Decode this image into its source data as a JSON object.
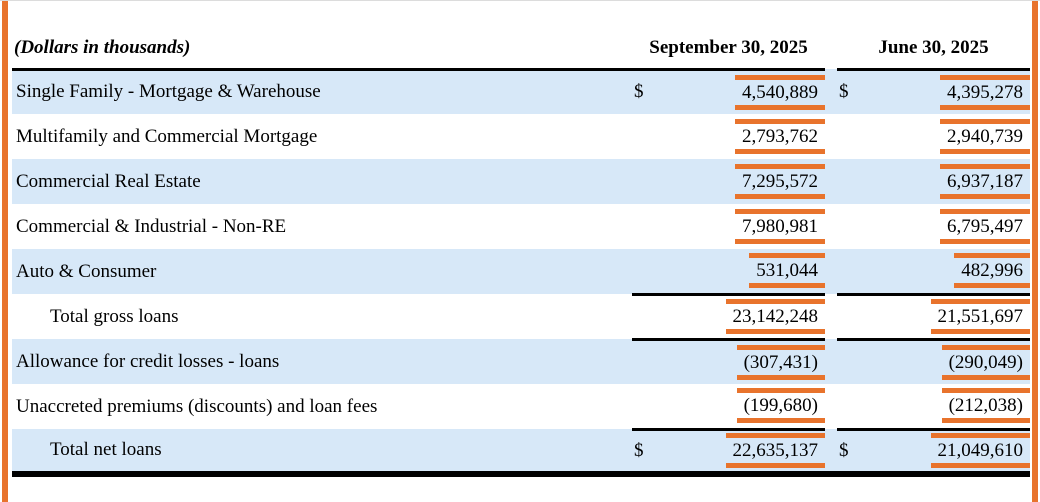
{
  "report_table": {
    "units_label": "(Dollars in thousands)",
    "currency_symbol": "$",
    "column_headers": [
      "September 30, 2025",
      "June 30, 2025"
    ],
    "rows": [
      {
        "label": "Single Family - Mortgage & Warehouse",
        "sep30_2025": "4,540,889",
        "jun30_2025": "4,395,278"
      },
      {
        "label": "Multifamily and Commercial Mortgage",
        "sep30_2025": "2,793,762",
        "jun30_2025": "2,940,739"
      },
      {
        "label": "Commercial Real Estate",
        "sep30_2025": "7,295,572",
        "jun30_2025": "6,937,187"
      },
      {
        "label": "Commercial & Industrial - Non-RE",
        "sep30_2025": "7,980,981",
        "jun30_2025": "6,795,497"
      },
      {
        "label": "Auto & Consumer",
        "sep30_2025": "531,044",
        "jun30_2025": "482,996"
      },
      {
        "label": "Total gross loans",
        "sep30_2025": "23,142,248",
        "jun30_2025": "21,551,697"
      },
      {
        "label": "Allowance for credit losses - loans",
        "sep30_2025": "(307,431)",
        "jun30_2025": "(290,049)"
      },
      {
        "label": "Unaccreted premiums (discounts) and loan fees",
        "sep30_2025": "(199,680)",
        "jun30_2025": "(212,038)"
      },
      {
        "label": "Total net loans",
        "sep30_2025": "22,635,137",
        "jun30_2025": "21,049,610"
      }
    ],
    "colors": {
      "row_shading_blue": "#d7e8f8",
      "highlight_orange": "#e8732c",
      "rule_black": "#000000"
    }
  }
}
